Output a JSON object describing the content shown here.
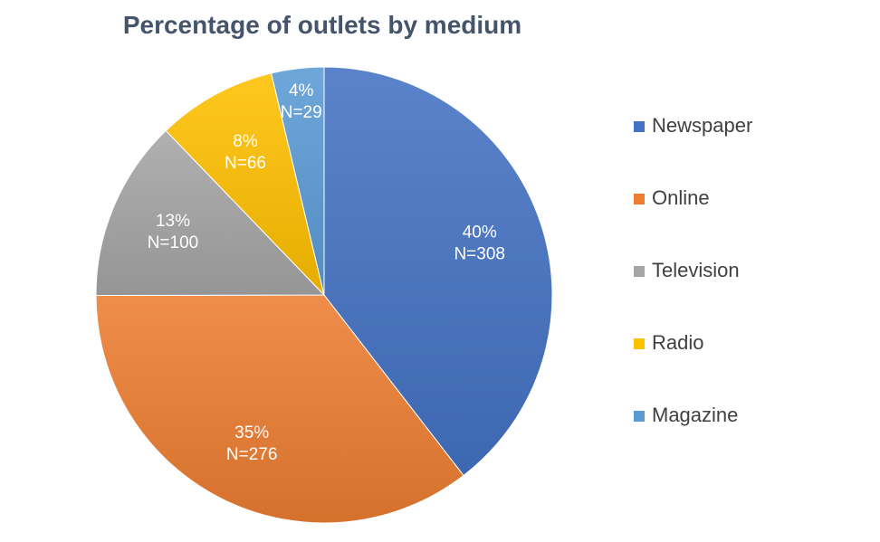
{
  "chart_data": {
    "type": "pie",
    "title": "Percentage of outlets by medium",
    "categories": [
      "Newspaper",
      "Online",
      "Television",
      "Radio",
      "Magazine"
    ],
    "values": [
      308,
      276,
      100,
      66,
      29
    ],
    "percent_labels": [
      "40%",
      "35%",
      "13%",
      "8%",
      "4%"
    ],
    "count_labels": [
      "N=308",
      "N=276",
      "N=100",
      "N=66",
      "N=29"
    ],
    "colors": [
      "#4472c4",
      "#ed7d31",
      "#a5a5a5",
      "#ffc000",
      "#5b9bd5"
    ],
    "legend_position": "right",
    "start_angle": "12 o'clock",
    "direction": "clockwise"
  }
}
